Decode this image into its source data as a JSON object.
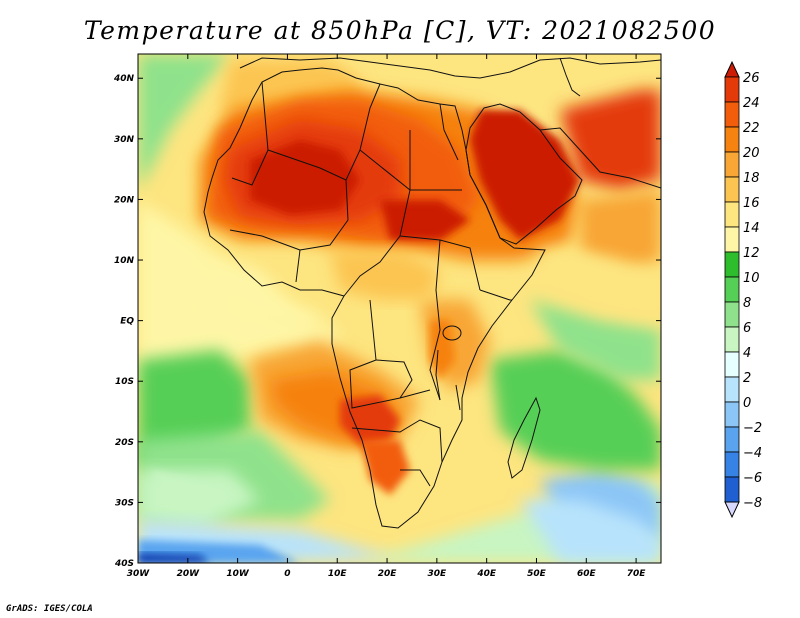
{
  "title": "Temperature at 850hPa [C], VT: 2021082500",
  "credit": "GrADS: IGES/COLA",
  "map": {
    "projection": "latlon",
    "lon_range": [
      -30,
      75
    ],
    "lat_range": [
      -40,
      44
    ],
    "lat_tick_labels": [
      {
        "lat": 40,
        "label": "40N"
      },
      {
        "lat": 30,
        "label": "30N"
      },
      {
        "lat": 20,
        "label": "20N"
      },
      {
        "lat": 10,
        "label": "10N"
      },
      {
        "lat": 0,
        "label": "EQ"
      },
      {
        "lat": -10,
        "label": "10S"
      },
      {
        "lat": -20,
        "label": "20S"
      },
      {
        "lat": -30,
        "label": "30S"
      },
      {
        "lat": -40,
        "label": "40S"
      }
    ],
    "lon_tick_labels": [
      {
        "lon": -30,
        "label": "30W"
      },
      {
        "lon": -20,
        "label": "20W"
      },
      {
        "lon": -10,
        "label": "10W"
      },
      {
        "lon": 0,
        "label": "0"
      },
      {
        "lon": 10,
        "label": "10E"
      },
      {
        "lon": 20,
        "label": "20E"
      },
      {
        "lon": 30,
        "label": "30E"
      },
      {
        "lon": 40,
        "label": "40E"
      },
      {
        "lon": 50,
        "label": "50E"
      },
      {
        "lon": 60,
        "label": "60E"
      },
      {
        "lon": 70,
        "label": "70E"
      }
    ]
  },
  "colorbar": {
    "levels": [
      26,
      24,
      22,
      20,
      18,
      16,
      14,
      12,
      10,
      8,
      6,
      4,
      2,
      0,
      -2,
      -4,
      -6,
      -8
    ],
    "labels": [
      "26",
      "24",
      "22",
      "20",
      "18",
      "16",
      "14",
      "12",
      "10",
      "8",
      "6",
      "4",
      "2",
      "0",
      "−2",
      "−4",
      "−6",
      "−8"
    ],
    "colors": [
      "#cc1c06",
      "#e43a0a",
      "#f25d0c",
      "#f6820f",
      "#f8a636",
      "#fcc551",
      "#fde580",
      "#fef6a6",
      "#2dbd2d",
      "#56cf56",
      "#8fe28b",
      "#c8f5c2",
      "#e6ffff",
      "#b8e3fc",
      "#8cc6f6",
      "#5aa4ef",
      "#3683e5",
      "#1f5fd2",
      "#0f3fb0",
      "#08237a",
      "#d8d8ff"
    ]
  },
  "field_colors": {
    "very_hot": "#cc1c06",
    "hot": "#e43a0a",
    "warm_red": "#f25d0c",
    "orange": "#f6820f",
    "light_orange": "#f8a636",
    "yellow_orange": "#fcc551",
    "yellow": "#fde580",
    "pale_yellow": "#fef6a6",
    "green": "#56cf56",
    "light_green": "#8fe28b",
    "pale_green": "#c8f5c2",
    "cyan": "#e6ffff",
    "light_blue": "#b8e3fc",
    "blue": "#8cc6f6",
    "mid_blue": "#5aa4ef",
    "dark_blue": "#1f5fd2",
    "navy": "#0f3fb0"
  }
}
